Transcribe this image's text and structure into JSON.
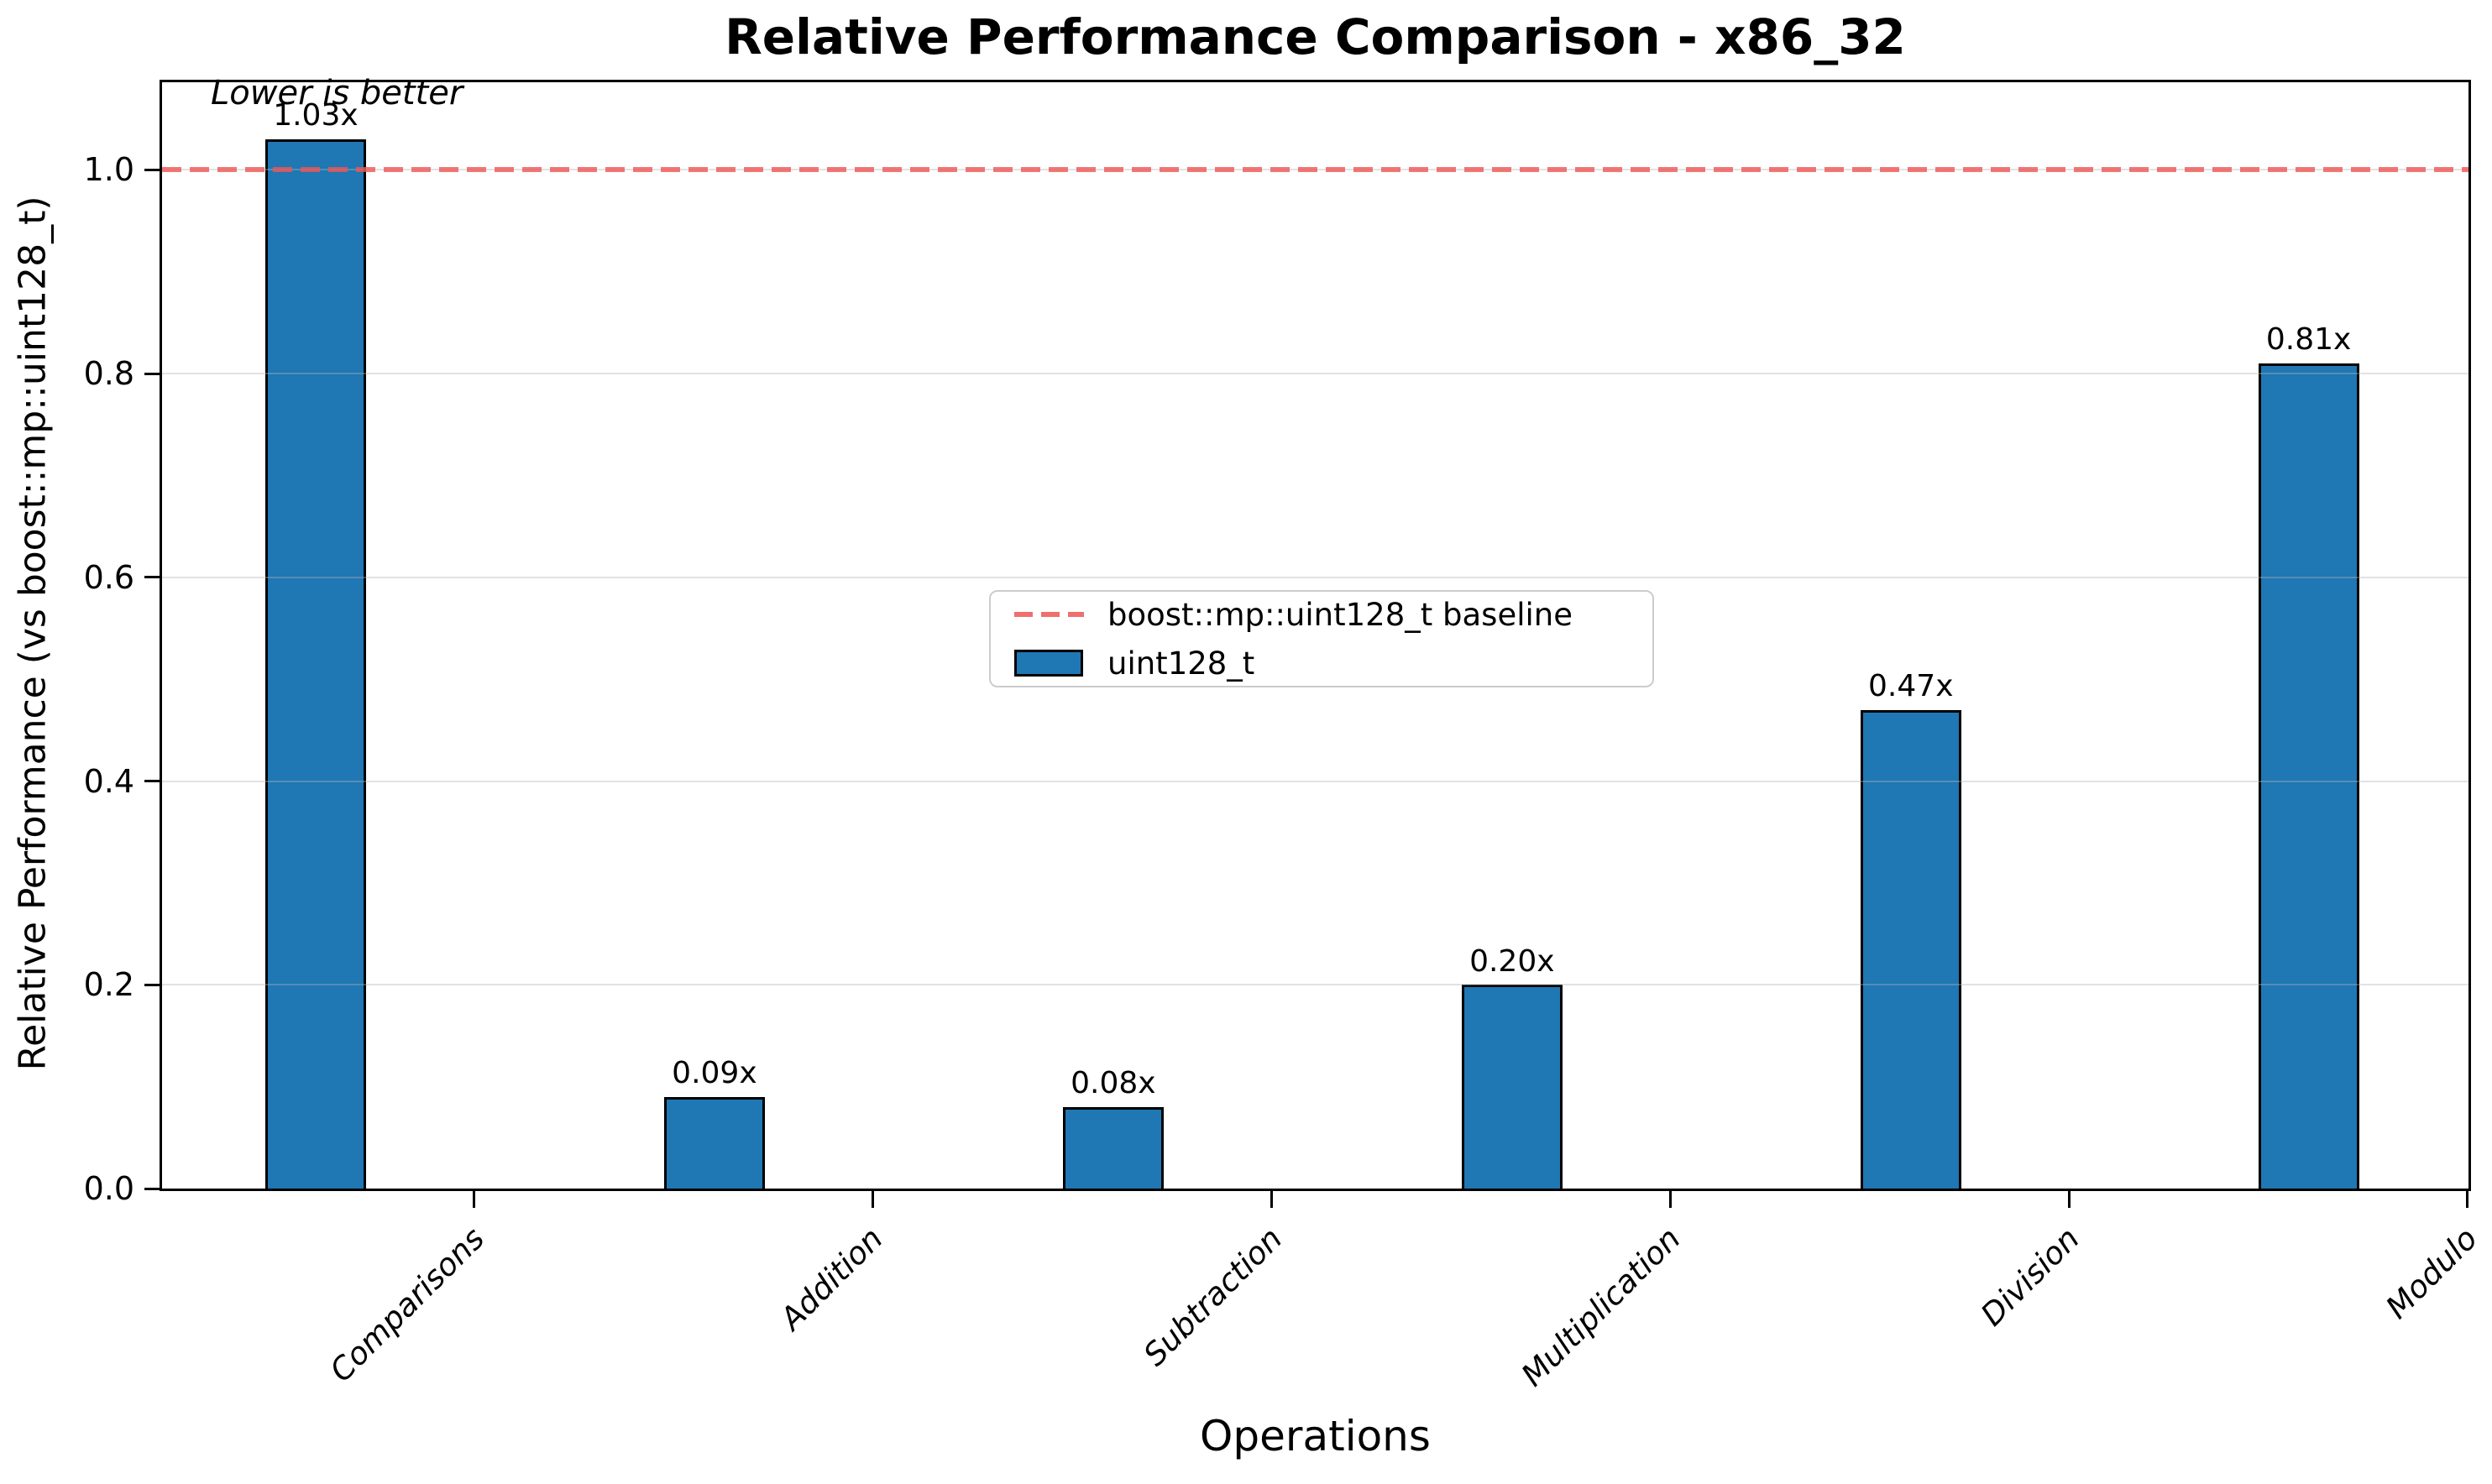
{
  "chart_data": {
    "type": "bar",
    "title": "Relative Performance Comparison - x86_32",
    "xlabel": "Operations",
    "ylabel": "Relative Performance (vs boost::mp::uint128_t)",
    "annotation": "Lower is better",
    "categories": [
      "Comparisons",
      "Addition",
      "Subtraction",
      "Multiplication",
      "Division",
      "Modulo"
    ],
    "values": [
      1.03,
      0.09,
      0.08,
      0.2,
      0.47,
      0.81
    ],
    "bar_labels": [
      "1.03x",
      "0.09x",
      "0.08x",
      "0.20x",
      "0.47x",
      "0.81x"
    ],
    "series": [
      {
        "name": "uint128_t",
        "values": [
          1.03,
          0.09,
          0.08,
          0.2,
          0.47,
          0.81
        ]
      }
    ],
    "baseline": {
      "value": 1.0,
      "label": "boost::mp::uint128_t baseline",
      "style": "dashed"
    },
    "ylim": [
      0,
      1.086
    ],
    "yticks": [
      0.0,
      0.2,
      0.4,
      0.6,
      0.8,
      1.0
    ],
    "ytick_labels": [
      "0.0",
      "0.2",
      "0.4",
      "0.6",
      "0.8",
      "1.0"
    ],
    "grid": "horizontal",
    "legend_position": "center",
    "legend": {
      "baseline_label": "boost::mp::uint128_t baseline",
      "series_label": "uint128_t"
    },
    "colors": {
      "bar_fill": "#1f77b4",
      "bar_edge": "#000000",
      "baseline_line": "#ee5555",
      "grid_line": "#e8e8e8",
      "axis": "#000000",
      "background": "#ffffff"
    }
  }
}
